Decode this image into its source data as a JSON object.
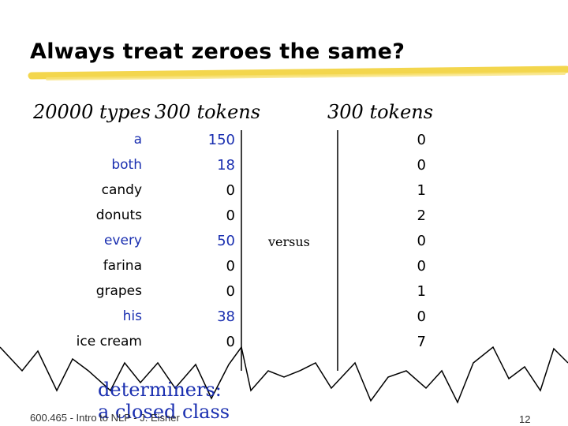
{
  "slide": {
    "title": "Always treat zeroes the same?",
    "header_types": "20000 types",
    "header_tokens_left": "300 tokens",
    "header_tokens_right": "300 tokens",
    "versus": "versus",
    "determiners_line1": "determiners:",
    "determiners_line2": "a closed class",
    "footer": "600.465 - Intro to NLP - J. Eisner",
    "page_number": "12",
    "rows": [
      {
        "word": "a",
        "left": "150",
        "right": "0",
        "determiner": true
      },
      {
        "word": "both",
        "left": "18",
        "right": "0",
        "determiner": true
      },
      {
        "word": "candy",
        "left": "0",
        "right": "1",
        "determiner": false
      },
      {
        "word": "donuts",
        "left": "0",
        "right": "2",
        "determiner": false
      },
      {
        "word": "every",
        "left": "50",
        "right": "0",
        "determiner": true
      },
      {
        "word": "farina",
        "left": "0",
        "right": "0",
        "determiner": false
      },
      {
        "word": "grapes",
        "left": "0",
        "right": "1",
        "determiner": false
      },
      {
        "word": "his",
        "left": "38",
        "right": "0",
        "determiner": true
      },
      {
        "word": "ice cream",
        "left": "0",
        "right": "7",
        "determiner": false
      }
    ],
    "colors": {
      "determiner_text": "#1a2fb0",
      "title_underline": "#f2d23a"
    }
  }
}
